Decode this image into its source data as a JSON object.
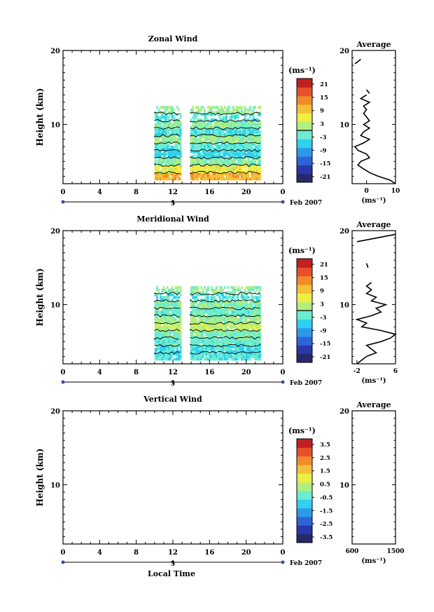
{
  "panels": [
    {
      "title": "Zonal Wind",
      "ylabel": "Height (km)",
      "yticks": [
        "20",
        "10"
      ],
      "xticks": [
        "0",
        "4",
        "8",
        "12",
        "16",
        "20",
        "0"
      ],
      "day_label": "5",
      "date_label": "Feb 2007",
      "xlabel": "",
      "cbar_unit": "(ms⁻¹)",
      "cbar_ticks": [
        "21",
        "15",
        "9",
        "3",
        "-3",
        "-9",
        "-15",
        "-21"
      ],
      "avg_title": "Average",
      "avg_yticks": [
        "20",
        "10"
      ],
      "avg_xticks": [
        "0",
        "10"
      ],
      "avg_xunit": "(ms⁻¹)"
    },
    {
      "title": "Meridional Wind",
      "ylabel": "Height (km)",
      "yticks": [
        "20",
        "10"
      ],
      "xticks": [
        "0",
        "4",
        "8",
        "12",
        "16",
        "20",
        "0"
      ],
      "day_label": "5",
      "date_label": "Feb 2007",
      "xlabel": "",
      "cbar_unit": "(ms⁻¹)",
      "cbar_ticks": [
        "21",
        "15",
        "9",
        "3",
        "-3",
        "-9",
        "-15",
        "-21"
      ],
      "avg_title": "Average",
      "avg_yticks": [
        "20",
        "10"
      ],
      "avg_xticks": [
        "-2",
        "6"
      ],
      "avg_xunit": "(ms⁻¹)"
    },
    {
      "title": "Vertical Wind",
      "ylabel": "Height (km)",
      "yticks": [
        "20",
        "10"
      ],
      "xticks": [
        "0",
        "4",
        "8",
        "12",
        "16",
        "20",
        "0"
      ],
      "day_label": "5",
      "date_label": "Feb 2007",
      "xlabel": "Local Time",
      "cbar_unit": "(ms⁻¹)",
      "cbar_ticks": [
        "3.5",
        "2.5",
        "1.5",
        "0.5",
        "-0.5",
        "-1.5",
        "-2.5",
        "-3.5"
      ],
      "avg_title": "Average",
      "avg_yticks": [
        "20",
        "10"
      ],
      "avg_xticks": [
        "600",
        "1500"
      ],
      "avg_xunit": "(ms⁻¹)"
    }
  ],
  "chart_data": [
    {
      "type": "heatmap",
      "title": "Zonal Wind",
      "xlabel": "",
      "ylabel": "Height (km)",
      "xlim": [
        0,
        24
      ],
      "ylim": [
        2,
        20
      ],
      "colorbar_range": [
        -24,
        24
      ],
      "data_windows": [
        [
          10,
          12.8
        ],
        [
          13.9,
          21.6
        ]
      ],
      "layers": [
        {
          "height": [
            2.5,
            3.5
          ],
          "value": 11
        },
        {
          "height": [
            3.5,
            4.5
          ],
          "value": 6
        },
        {
          "height": [
            4.5,
            5.5
          ],
          "value": 0
        },
        {
          "height": [
            5.5,
            6.5
          ],
          "value": -5
        },
        {
          "height": [
            6.5,
            7.5
          ],
          "value": -3
        },
        {
          "height": [
            7.5,
            8.5
          ],
          "value": 1
        },
        {
          "height": [
            8.5,
            9.5
          ],
          "value": -4
        },
        {
          "height": [
            9.5,
            10.5
          ],
          "value": 0
        },
        {
          "height": [
            10.5,
            11.5
          ],
          "value": -3
        },
        {
          "height": [
            11.5,
            12.5
          ],
          "value": 1
        }
      ],
      "average_profile": {
        "xlim": [
          -5,
          10
        ],
        "height": [
          2,
          2.5,
          3,
          3.5,
          4,
          4.5,
          5,
          5.5,
          6,
          6.5,
          7,
          7.5,
          8,
          8.5,
          9,
          9.5,
          10,
          10.5,
          11,
          11.5,
          12,
          12.5,
          13,
          13.5,
          14
        ],
        "value": [
          10,
          8,
          4,
          1,
          -1,
          -3,
          -2,
          1,
          0,
          -3,
          -4,
          -1,
          1,
          -2,
          -1,
          1,
          -1,
          1,
          0,
          -1,
          0,
          -1,
          1,
          -2,
          0
        ]
      }
    },
    {
      "type": "heatmap",
      "title": "Meridional Wind",
      "xlabel": "",
      "ylabel": "Height (km)",
      "xlim": [
        0,
        24
      ],
      "ylim": [
        2,
        20
      ],
      "colorbar_range": [
        -24,
        24
      ],
      "data_windows": [
        [
          10,
          12.8
        ],
        [
          13.9,
          21.6
        ]
      ],
      "layers": [
        {
          "height": [
            2.5,
            3.5
          ],
          "value": -3
        },
        {
          "height": [
            3.5,
            4.5
          ],
          "value": -4
        },
        {
          "height": [
            4.5,
            5.5
          ],
          "value": -2
        },
        {
          "height": [
            5.5,
            6.5
          ],
          "value": -1
        },
        {
          "height": [
            6.5,
            7.5
          ],
          "value": 3
        },
        {
          "height": [
            7.5,
            8.5
          ],
          "value": 1
        },
        {
          "height": [
            8.5,
            9.5
          ],
          "value": -2
        },
        {
          "height": [
            9.5,
            10.5
          ],
          "value": 0
        },
        {
          "height": [
            10.5,
            11.5
          ],
          "value": -3
        },
        {
          "height": [
            11.5,
            12.5
          ],
          "value": 0
        }
      ],
      "average_profile": {
        "xlim": [
          -3,
          6
        ],
        "height": [
          2,
          2.5,
          3,
          3.5,
          4,
          4.5,
          5,
          5.5,
          6,
          6.5,
          7,
          7.5,
          8,
          8.5,
          9,
          9.5,
          10,
          10.5,
          11,
          11.5,
          12,
          12.5,
          13
        ],
        "value": [
          -2,
          -1,
          0,
          2,
          1,
          0,
          3,
          5,
          6,
          3,
          -1,
          0,
          -2,
          1,
          3,
          2,
          4,
          1,
          2,
          0,
          1,
          0,
          1
        ]
      }
    },
    {
      "type": "heatmap",
      "title": "Vertical Wind",
      "xlabel": "Local Time",
      "ylabel": "Height (km)",
      "xlim": [
        0,
        24
      ],
      "ylim": [
        2,
        20
      ],
      "colorbar_range": [
        -4,
        4
      ],
      "data_windows": [],
      "layers": [],
      "average_profile": {
        "xlim": [
          600,
          1500
        ],
        "height": [],
        "value": []
      }
    }
  ]
}
